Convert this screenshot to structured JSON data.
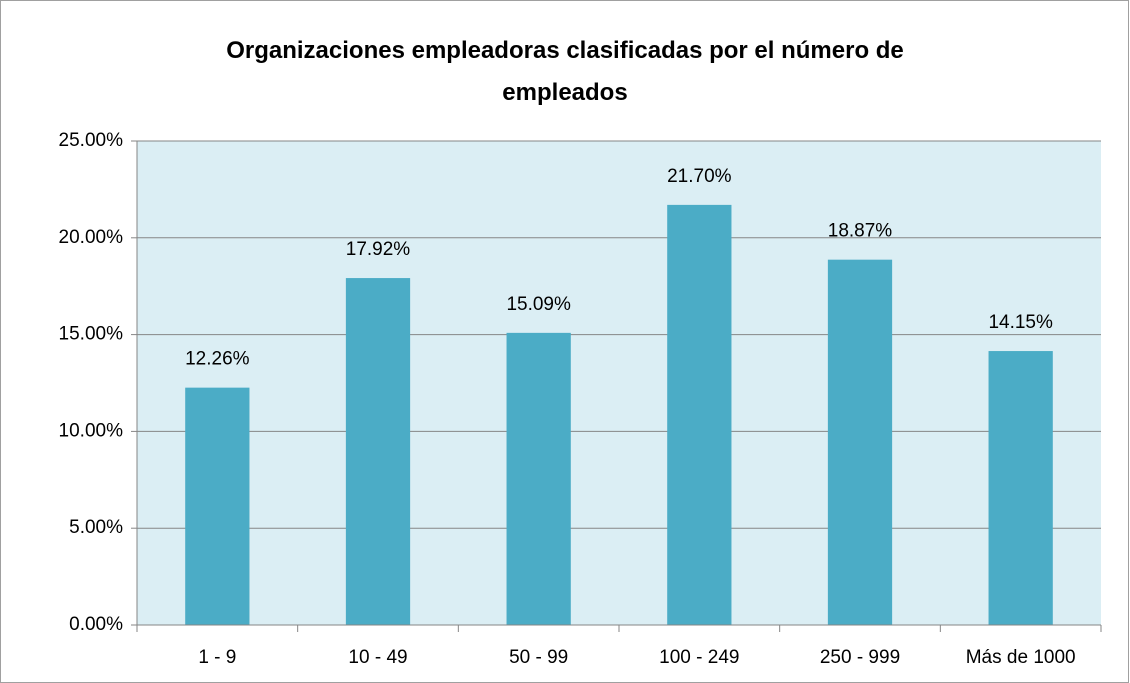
{
  "chart_data": {
    "type": "bar",
    "title": "Organizaciones empleadoras clasificadas por el número de empleados",
    "categories": [
      "1 - 9",
      "10 - 49",
      "50 - 99",
      "100 - 249",
      "250 - 999",
      "Más de 1000"
    ],
    "values": [
      12.26,
      17.92,
      15.09,
      21.7,
      18.87,
      14.15
    ],
    "value_labels": [
      "12.26%",
      "17.92%",
      "15.09%",
      "21.70%",
      "18.87%",
      "14.15%"
    ],
    "color": "#4bacc6",
    "ylim": [
      0,
      25
    ],
    "yticks": [
      {
        "value": 0,
        "label": "0.00%"
      },
      {
        "value": 5,
        "label": "5.00%"
      },
      {
        "value": 10,
        "label": "10.00%"
      },
      {
        "value": 15,
        "label": "15.00%"
      },
      {
        "value": 20,
        "label": "20.00%"
      },
      {
        "value": 25,
        "label": "25.00%"
      }
    ],
    "grid": true
  }
}
